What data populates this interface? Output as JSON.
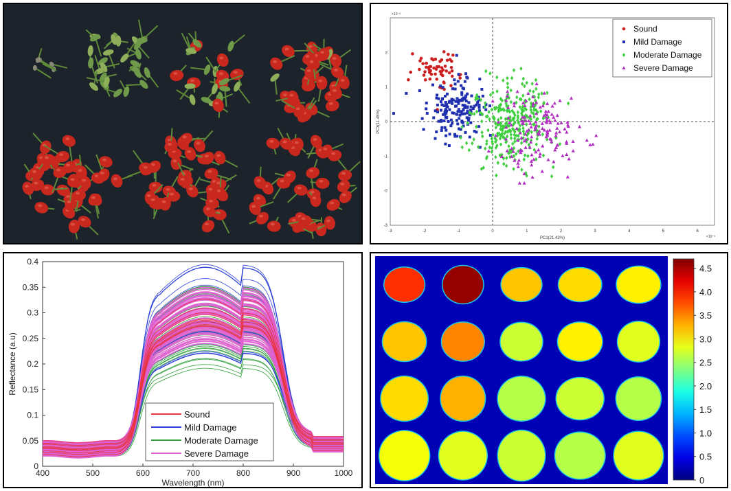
{
  "figure": {
    "photo": {
      "groups": [
        "Sound",
        "Sound",
        "Mild Damage",
        "Moderate Damage",
        "Severe Damage",
        "Severe Damage",
        "Severe Damage"
      ]
    },
    "chart_data": [
      {
        "type": "scatter",
        "title": "",
        "xlabel": "PC1(21.43%)",
        "ylabel": "PC3(11.45%)",
        "x_exponent": "×10⁻³",
        "y_exponent": "×10⁻³",
        "xlim": [
          -3,
          6.5
        ],
        "ylim": [
          -3,
          3
        ],
        "xticks": [
          "-3",
          "-2",
          "-1",
          "0",
          "1",
          "2",
          "3",
          "4",
          "5",
          "6"
        ],
        "yticks": [
          "-3",
          "-2",
          "-1",
          "0",
          "1",
          "2"
        ],
        "legend_position": "top-right",
        "series": [
          {
            "name": "Sound",
            "marker": "circle",
            "color": "#cc1f1f",
            "center": [
              -1.6,
              1.5
            ],
            "spread": [
              0.55,
              0.45
            ],
            "count": 60
          },
          {
            "name": "Mild Damage",
            "marker": "square",
            "color": "#1f2fb0",
            "center": [
              -1.1,
              0.4
            ],
            "spread": [
              0.75,
              0.8
            ],
            "count": 170
          },
          {
            "name": "Moderate Damage",
            "marker": "diamond",
            "color": "#3fcf3f",
            "center": [
              0.6,
              -0.1
            ],
            "spread": [
              0.95,
              1.0
            ],
            "count": 320
          },
          {
            "name": "Severe Damage",
            "marker": "triangle",
            "color": "#b02fc0",
            "center": [
              1.3,
              -0.3
            ],
            "spread": [
              1.0,
              1.1
            ],
            "count": 150
          }
        ]
      },
      {
        "type": "line",
        "title": "",
        "xlabel": "Wavelength (nm)",
        "ylabel": "Reflectance (a.u)",
        "xlim": [
          400,
          1000
        ],
        "ylim": [
          0,
          0.4
        ],
        "xticks": [
          "400",
          "500",
          "600",
          "700",
          "800",
          "900",
          "1000"
        ],
        "yticks": [
          "0",
          "0.05",
          "0.1",
          "0.15",
          "0.2",
          "0.25",
          "0.3",
          "0.35",
          "0.4"
        ],
        "legend_position": "bottom-center",
        "series": [
          {
            "name": "Sound",
            "color": "#e8333a",
            "count": 10,
            "peak_range": [
              0.27,
              0.33
            ]
          },
          {
            "name": "Mild Damage",
            "color": "#2a3fd6",
            "count": 22,
            "peak_range": [
              0.22,
              0.4
            ]
          },
          {
            "name": "Moderate Damage",
            "color": "#2ea03a",
            "count": 30,
            "peak_range": [
              0.19,
              0.37
            ]
          },
          {
            "name": "Severe Damage",
            "color": "#e060d0",
            "count": 60,
            "peak_range": [
              0.24,
              0.35
            ]
          }
        ]
      },
      {
        "type": "heatmap",
        "title": "",
        "colorbar_ticks": [
          "4.5",
          "4.0",
          "3.5",
          "3.0",
          "2.5",
          "2.0",
          "1.5",
          "1.0",
          "0.5",
          "0"
        ],
        "colorbar_range": [
          0,
          4.7
        ],
        "rows": 4,
        "cols": 5,
        "values": [
          [
            3.9,
            4.6,
            3.2,
            3.1,
            3.0
          ],
          [
            3.2,
            3.5,
            2.7,
            3.0,
            2.8
          ],
          [
            3.1,
            3.3,
            2.6,
            2.7,
            2.6
          ],
          [
            2.9,
            2.8,
            2.7,
            2.6,
            2.8
          ]
        ]
      }
    ]
  }
}
